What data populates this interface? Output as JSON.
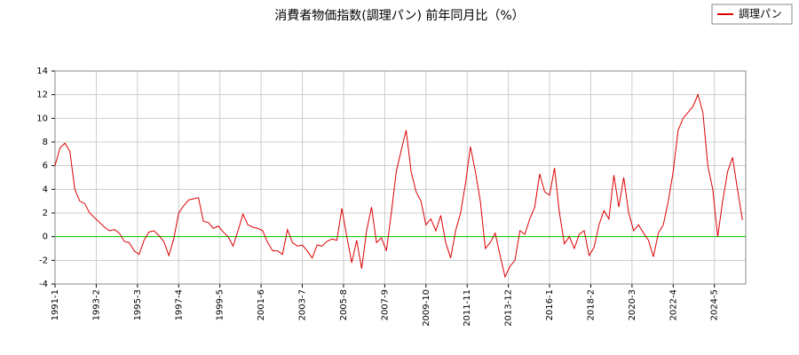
{
  "chart_data": {
    "type": "line",
    "title": "消費者物価指数(調理パン) 前年同月比（%）",
    "x": [
      "1991-1",
      "1991-4",
      "1991-7",
      "1991-10",
      "1992-1",
      "1992-4",
      "1992-7",
      "1992-10",
      "1993-1",
      "1993-4",
      "1993-7",
      "1993-10",
      "1994-1",
      "1994-4",
      "1994-7",
      "1994-10",
      "1995-1",
      "1995-4",
      "1995-7",
      "1995-10",
      "1996-1",
      "1996-4",
      "1996-7",
      "1996-10",
      "1997-1",
      "1997-4",
      "1997-7",
      "1997-10",
      "1998-1",
      "1998-4",
      "1998-7",
      "1998-10",
      "1999-1",
      "1999-4",
      "1999-7",
      "1999-10",
      "2000-1",
      "2000-4",
      "2000-7",
      "2000-10",
      "2001-1",
      "2001-4",
      "2001-7",
      "2001-10",
      "2002-1",
      "2002-4",
      "2002-7",
      "2002-10",
      "2003-1",
      "2003-4",
      "2003-7",
      "2003-10",
      "2004-1",
      "2004-4",
      "2004-7",
      "2004-10",
      "2005-1",
      "2005-4",
      "2005-7",
      "2005-10",
      "2006-1",
      "2006-4",
      "2006-7",
      "2006-10",
      "2007-1",
      "2007-4",
      "2007-7",
      "2007-10",
      "2008-1",
      "2008-4",
      "2008-7",
      "2008-10",
      "2009-1",
      "2009-4",
      "2009-7",
      "2009-10",
      "2010-1",
      "2010-4",
      "2010-7",
      "2010-10",
      "2011-1",
      "2011-4",
      "2011-7",
      "2011-10",
      "2012-1",
      "2012-4",
      "2012-7",
      "2012-10",
      "2013-1",
      "2013-4",
      "2013-7",
      "2013-10",
      "2014-1",
      "2014-4",
      "2014-7",
      "2014-10",
      "2015-1",
      "2015-4",
      "2015-7",
      "2015-10",
      "2016-1",
      "2016-4",
      "2016-7",
      "2016-10",
      "2017-1",
      "2017-4",
      "2017-7",
      "2017-10",
      "2018-1",
      "2018-4",
      "2018-7",
      "2018-10",
      "2019-1",
      "2019-4",
      "2019-7",
      "2019-10",
      "2020-1",
      "2020-4",
      "2020-7",
      "2020-10",
      "2021-1",
      "2021-4",
      "2021-7",
      "2021-10",
      "2022-1",
      "2022-4",
      "2022-7",
      "2022-10",
      "2023-1",
      "2023-4",
      "2023-7",
      "2023-10",
      "2024-1",
      "2024-4",
      "2024-7",
      "2024-10",
      "2025-1",
      "2025-4",
      "2025-7",
      "2025-10"
    ],
    "series": [
      {
        "name": "調理パン",
        "color": "#dd0000",
        "values": [
          6.0,
          7.5,
          7.9,
          7.2,
          4.0,
          3.0,
          2.8,
          2.0,
          1.6,
          1.2,
          0.8,
          0.5,
          0.6,
          0.3,
          -0.4,
          -0.5,
          -1.2,
          -1.5,
          -0.3,
          0.4,
          0.5,
          0.1,
          -0.4,
          -1.6,
          -0.2,
          2.0,
          2.6,
          3.1,
          3.2,
          3.3,
          1.3,
          1.2,
          0.7,
          0.9,
          0.4,
          0.0,
          -0.8,
          0.5,
          1.9,
          1.0,
          0.8,
          0.7,
          0.5,
          -0.5,
          -1.2,
          -1.2,
          -1.5,
          0.6,
          -0.5,
          -0.8,
          -0.7,
          -1.2,
          -1.8,
          -0.7,
          -0.8,
          -0.4,
          -0.2,
          -0.3,
          2.4,
          0.0,
          -2.2,
          -0.3,
          -2.7,
          0.5,
          2.5,
          -0.5,
          -0.1,
          -1.2,
          2.0,
          5.5,
          7.3,
          9.0,
          5.5,
          3.8,
          3.0,
          1.0,
          1.5,
          0.5,
          1.8,
          -0.5,
          -1.8,
          0.5,
          2.0,
          4.5,
          7.6,
          5.5,
          3.0,
          -1.0,
          -0.5,
          0.3,
          -1.6,
          -3.4,
          -2.5,
          -2.0,
          0.5,
          0.2,
          1.5,
          2.5,
          5.3,
          3.8,
          3.5,
          5.8,
          2.0,
          -0.6,
          0.0,
          -1.0,
          0.2,
          0.5,
          -1.6,
          -0.9,
          1.0,
          2.2,
          1.5,
          5.2,
          2.5,
          5.0,
          2.0,
          0.5,
          1.0,
          0.3,
          -0.3,
          -1.7,
          0.3,
          1.0,
          3.0,
          5.5,
          9.0,
          10.0,
          10.5,
          11.0,
          12.0,
          10.5,
          6.0,
          4.0,
          0.0,
          3.0,
          5.5,
          6.7,
          4.0,
          1.4
        ]
      }
    ],
    "xlim": [
      "1991-1",
      "2025-12"
    ],
    "xticks": [
      "1991-1",
      "1993-2",
      "1995-3",
      "1997-4",
      "1999-5",
      "2001-6",
      "2003-7",
      "2005-8",
      "2007-9",
      "2009-10",
      "2011-11",
      "2013-12",
      "2016-1",
      "2018-2",
      "2020-3",
      "2022-4",
      "2024-5"
    ],
    "ylim": [
      -4,
      14
    ],
    "yticks": [
      -4,
      -2,
      0,
      2,
      4,
      6,
      8,
      10,
      12,
      14
    ],
    "grid": true,
    "zero_line_color": "#00cc00",
    "legend": "top-right"
  }
}
